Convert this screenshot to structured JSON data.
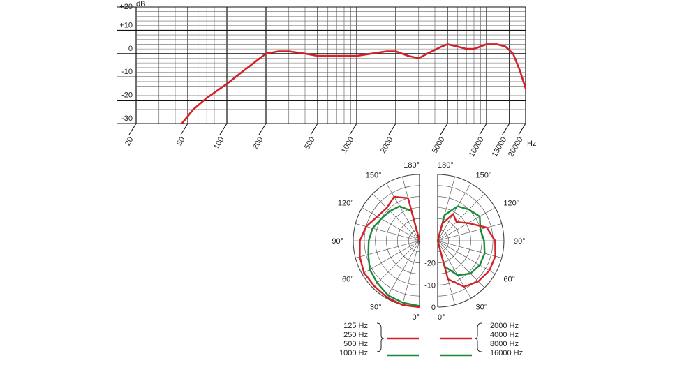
{
  "chart_data": [
    {
      "type": "line",
      "title": "",
      "xlabel": "Hz",
      "ylabel": "dB",
      "x_scale": "log",
      "xlim": [
        20,
        20000
      ],
      "ylim": [
        -30,
        20
      ],
      "grid": true,
      "y_ticks": [
        "+20",
        "+10",
        "0",
        "-10",
        "-20",
        "-30"
      ],
      "y_tick_values": [
        20,
        10,
        0,
        -10,
        -20,
        -30
      ],
      "x_ticks": [
        "20",
        "50",
        "100",
        "200",
        "500",
        "1000",
        "2000",
        "5000",
        "10000",
        "15000",
        "20000"
      ],
      "x_tick_values": [
        20,
        50,
        100,
        200,
        500,
        1000,
        2000,
        5000,
        10000,
        15000,
        20000
      ],
      "series": [
        {
          "color": "#d42027",
          "x": [
            45,
            55,
            70,
            100,
            130,
            170,
            200,
            250,
            300,
            400,
            500,
            700,
            1000,
            1300,
            1700,
            2000,
            2500,
            3000,
            3500,
            4500,
            5000,
            6000,
            7000,
            8000,
            10000,
            12000,
            14000,
            16000,
            18000,
            20000
          ],
          "y": [
            -30,
            -24,
            -19,
            -13,
            -8,
            -3,
            0,
            1,
            1,
            0,
            -1,
            -1,
            -1,
            0,
            1,
            1,
            -1,
            -2,
            0,
            3,
            4,
            3,
            2,
            2,
            4,
            4,
            3,
            0,
            -7,
            -15
          ]
        }
      ]
    },
    {
      "type": "polar",
      "title": "",
      "r_labels": [
        "-20",
        "-10",
        "0"
      ],
      "r_values": [
        -20,
        -10,
        0
      ],
      "r_range": [
        -30,
        0
      ],
      "angle_labels_left": [
        "180°",
        "150°",
        "120°",
        "90°",
        "60°",
        "30°",
        "0°"
      ],
      "angle_labels_right": [
        "180°",
        "150°",
        "120°",
        "90°",
        "60°",
        "30°",
        "0°"
      ],
      "left_series": [
        {
          "name": "1000 Hz",
          "color": "#1a8a3a",
          "angles": [
            0,
            15,
            30,
            45,
            60,
            75,
            90,
            105,
            120,
            135,
            150,
            165,
            180
          ],
          "values": [
            -0.5,
            -1,
            -1.5,
            -3,
            -4,
            -6,
            -7,
            -8,
            -10,
            -11,
            -12,
            -16,
            -30
          ]
        },
        {
          "name": "",
          "color": "#d42027",
          "angles": [
            0,
            15,
            30,
            45,
            60,
            75,
            90,
            105,
            120,
            135,
            150,
            165,
            180
          ],
          "values": [
            0,
            0,
            -0.5,
            -1,
            -1,
            -2,
            -3,
            -5,
            -8,
            -9,
            -7,
            -10,
            -30
          ]
        }
      ],
      "right_series": [
        {
          "name": "16000 Hz",
          "color": "#1a8a3a",
          "angles": [
            0,
            15,
            30,
            45,
            60,
            75,
            90,
            105,
            120,
            135,
            150,
            165,
            180
          ],
          "values": [
            -30,
            -18,
            -12,
            -9,
            -8,
            -8,
            -9,
            -10,
            -8,
            -10,
            -12,
            -18,
            -30
          ]
        },
        {
          "name": "",
          "color": "#d42027",
          "angles": [
            0,
            15,
            30,
            45,
            60,
            75,
            90,
            105,
            120,
            135,
            150,
            165,
            180
          ],
          "values": [
            -30,
            -12,
            -6,
            -4,
            -3,
            -3,
            -4,
            -7,
            -14,
            -18,
            -16,
            -22,
            -30
          ]
        }
      ],
      "legend_left": {
        "labels": [
          "125 Hz",
          "250 Hz",
          "500 Hz",
          "1000 Hz"
        ],
        "group_line_colors": [
          "#d42027",
          "#1a8a3a"
        ]
      },
      "legend_right": {
        "labels": [
          "2000 Hz",
          "4000 Hz",
          "8000 Hz",
          "16000 Hz"
        ],
        "group_line_colors": [
          "#d42027",
          "#1a8a3a"
        ]
      }
    }
  ]
}
